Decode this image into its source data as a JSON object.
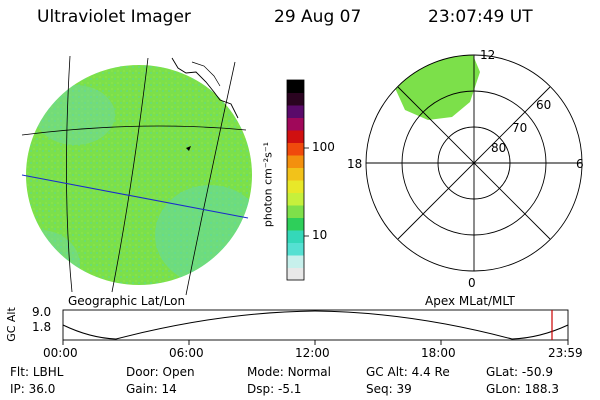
{
  "header": {
    "instrument": "Ultraviolet Imager",
    "date": "29 Aug 07",
    "time": "23:07:49 UT"
  },
  "colorbar": {
    "unit_label": "photon cm⁻²s⁻¹",
    "tick_labels": [
      "100",
      "10"
    ],
    "scale": "log",
    "colors": [
      "#e8e8e8",
      "#c7f0ec",
      "#55e0d2",
      "#34d8b9",
      "#2ecf5a",
      "#7fe04a",
      "#c6f03c",
      "#e8e829",
      "#f2c21a",
      "#f3900e",
      "#f04a0c",
      "#d01010",
      "#a0085a",
      "#5a0a6a",
      "#2a0420",
      "#000000"
    ]
  },
  "geo_panel": {
    "label": "Geographic Lat/Lon",
    "fill_color": "#7ce04a"
  },
  "polar_panel": {
    "label": "Apex MLat/MLT",
    "lat_labels": [
      "60",
      "70",
      "80"
    ],
    "mlt_labels": {
      "top": "12",
      "left": "18",
      "right": "6",
      "bottom": "0"
    }
  },
  "altitude_plot": {
    "ylabel": "GC Alt",
    "y_tick_labels": [
      "9.0",
      "1.8"
    ],
    "x_tick_labels": [
      "00:00",
      "06:00",
      "12:00",
      "18:00",
      "23:59"
    ],
    "marker_color": "#cc0000"
  },
  "info_rows": [
    [
      {
        "label": "Flt:",
        "value": "LBHL"
      },
      {
        "label": "Door:",
        "value": "Open"
      },
      {
        "label": "Mode:",
        "value": "Normal"
      },
      {
        "label": "GC Alt:",
        "value": "4.4 Re"
      },
      {
        "label": "GLat:",
        "value": "-50.9"
      }
    ],
    [
      {
        "label": "IP:",
        "value": "36.0"
      },
      {
        "label": "Gain:",
        "value": "14"
      },
      {
        "label": "Dsp:",
        "value": "-5.1"
      },
      {
        "label": "Seq:",
        "value": "39"
      },
      {
        "label": "GLon:",
        "value": "188.3"
      }
    ]
  ]
}
